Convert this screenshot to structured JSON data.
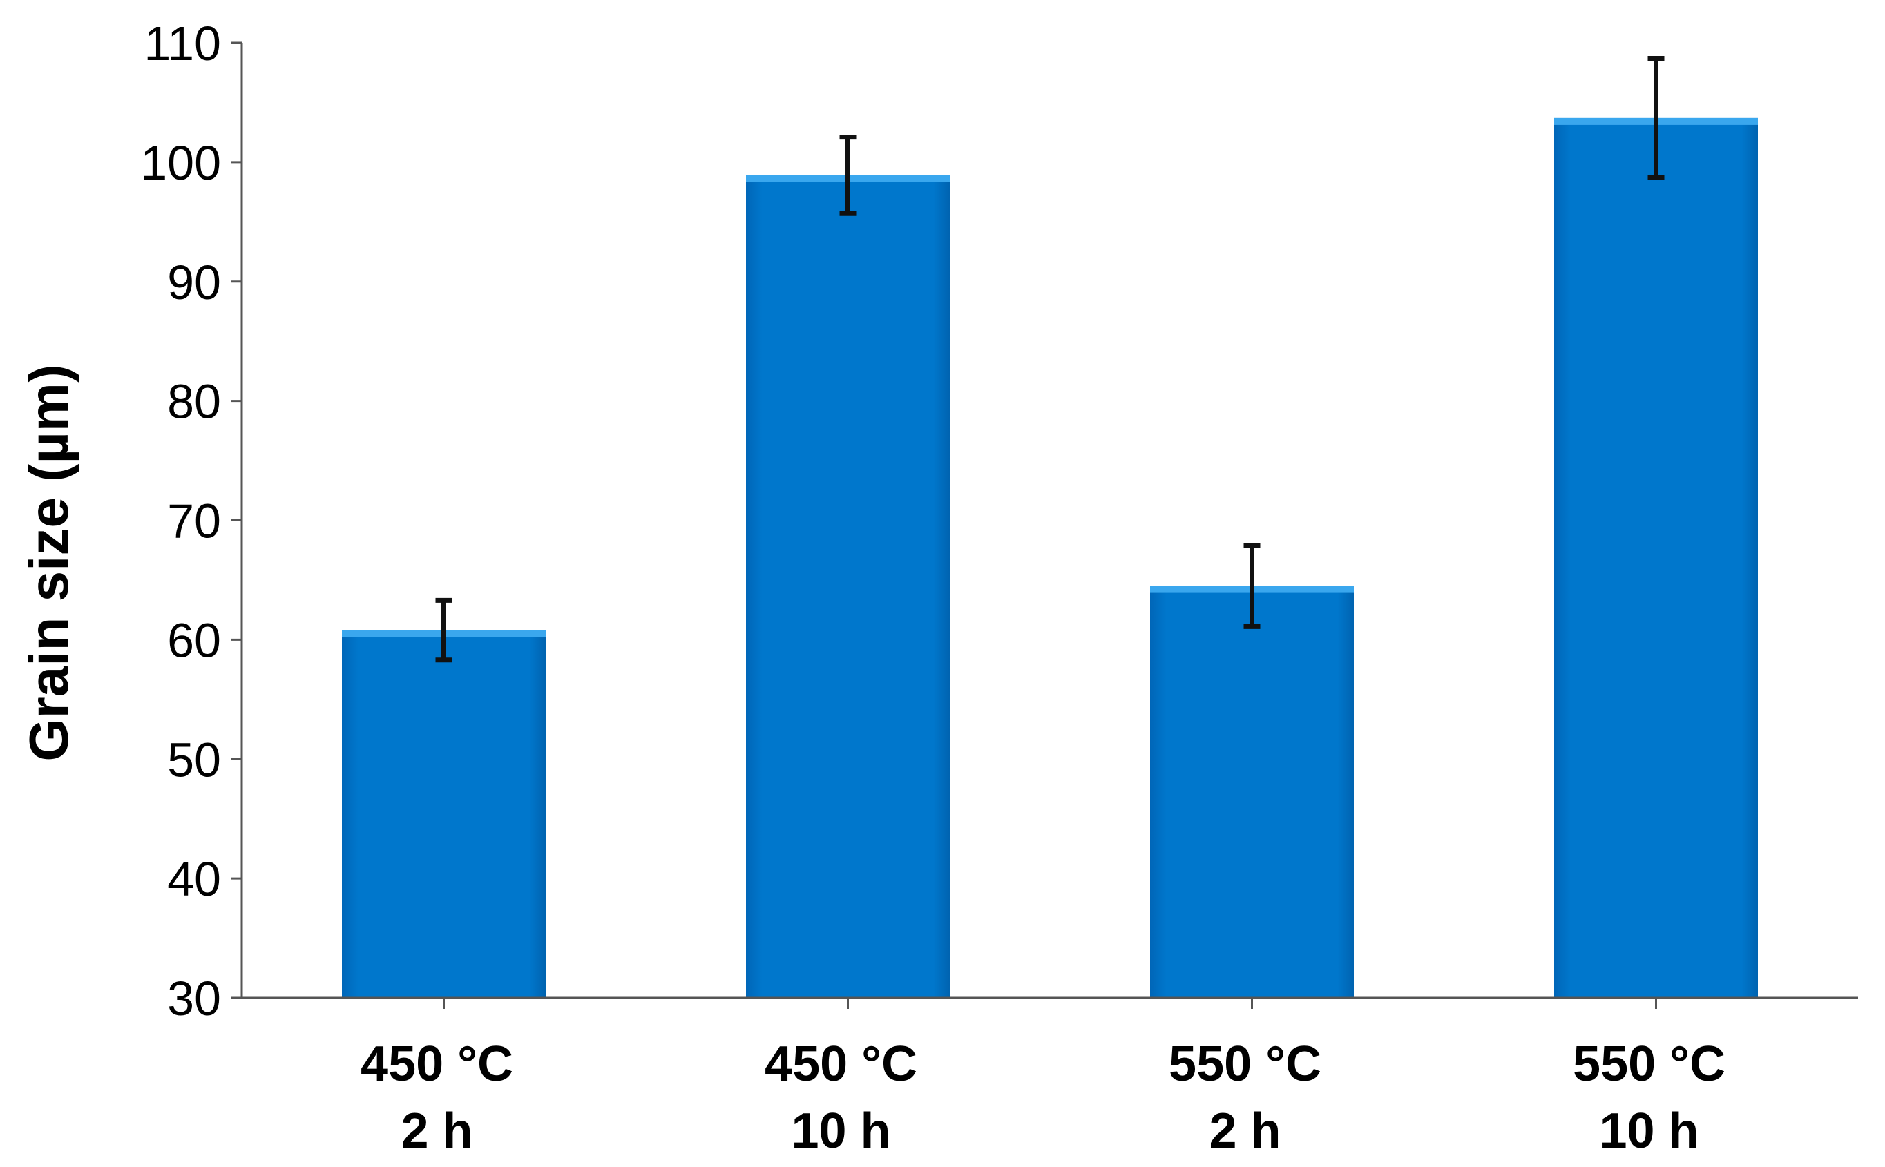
{
  "chart_data": {
    "type": "bar",
    "categories": [
      [
        "450 °C",
        "2 h"
      ],
      [
        "450 °C",
        "10 h"
      ],
      [
        "550 °C",
        "2 h"
      ],
      [
        "550 °C",
        "10 h"
      ]
    ],
    "values": [
      60.8,
      98.9,
      64.5,
      103.7
    ],
    "error": [
      2.5,
      3.2,
      3.4,
      5.0
    ],
    "ylabel": "Grain size (µm)",
    "xlabel": "",
    "title": "",
    "ylim": [
      30,
      110
    ],
    "yticks": [
      30,
      40,
      50,
      60,
      70,
      80,
      90,
      100,
      110
    ],
    "grid": false,
    "legend": "none",
    "colors": {
      "bar": "#0077cc",
      "bar_top": "#3aa7ee",
      "error_bar": "#111111",
      "axis": "#555555"
    }
  }
}
